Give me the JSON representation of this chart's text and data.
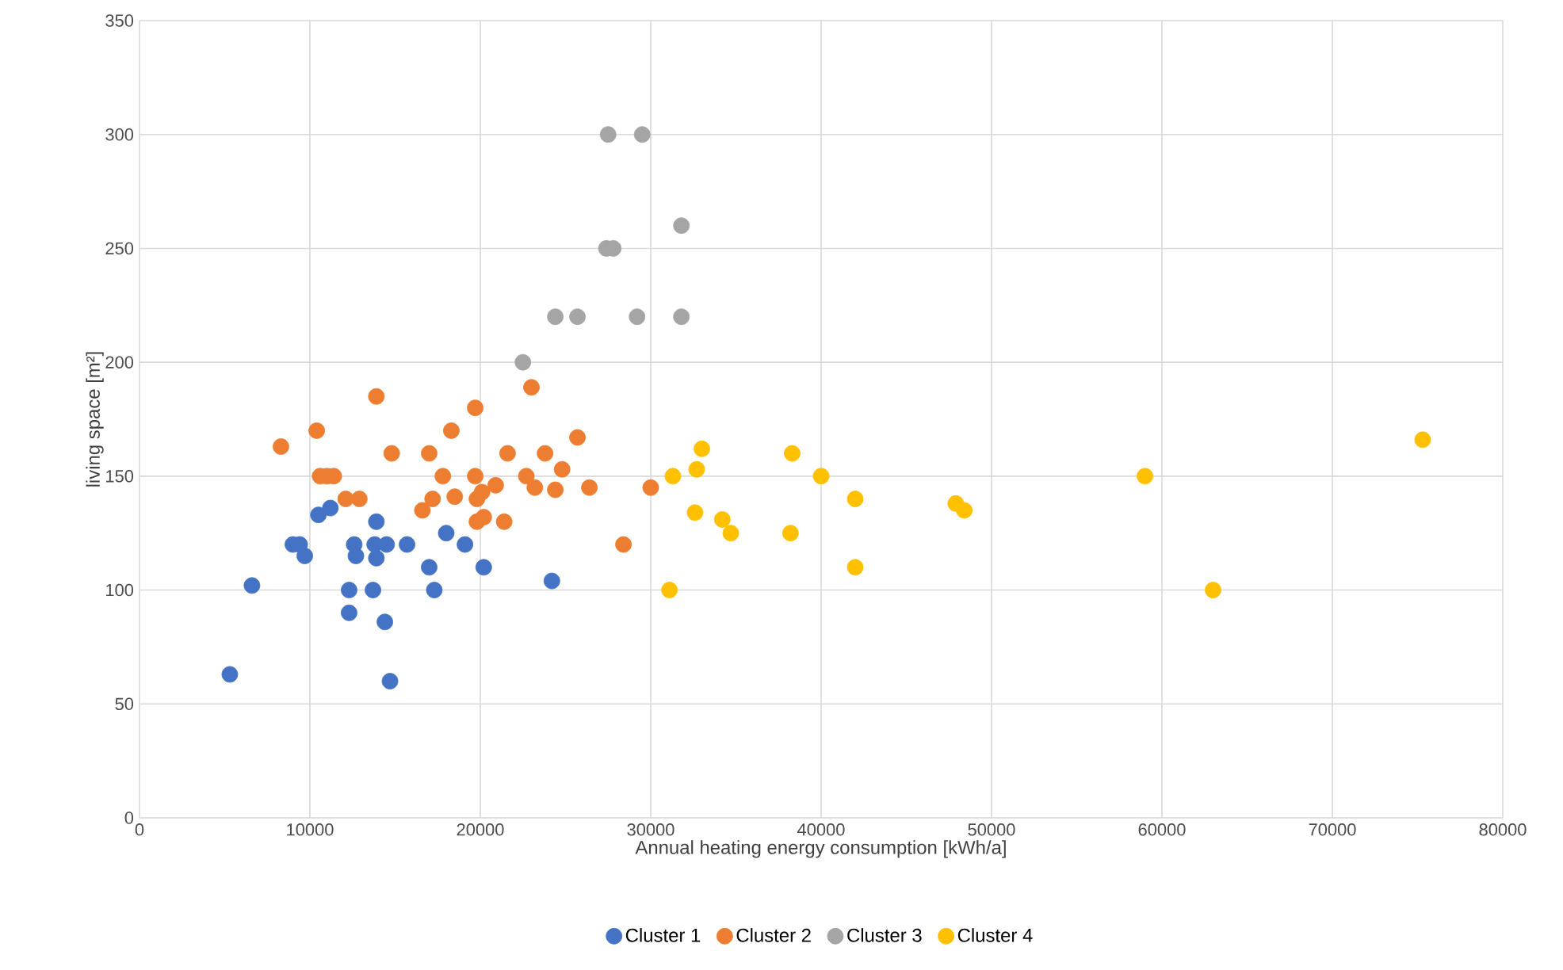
{
  "chart_data": {
    "type": "scatter",
    "xlabel": "Annual heating energy consumption [kWh/a]",
    "ylabel": "living space [m²]",
    "xlim": [
      0,
      80000
    ],
    "ylim": [
      0,
      350
    ],
    "xticks": [
      0,
      10000,
      20000,
      30000,
      40000,
      50000,
      60000,
      70000,
      80000
    ],
    "yticks": [
      0,
      50,
      100,
      150,
      200,
      250,
      300,
      350
    ],
    "grid": true,
    "legend": "bottom",
    "marker": "circle",
    "series": [
      {
        "name": "Cluster 1",
        "color": "#4472c4",
        "x": [
          5300,
          6600,
          9000,
          9400,
          9700,
          10500,
          11200,
          12300,
          12300,
          12600,
          12700,
          13700,
          13900,
          13800,
          13900,
          14500,
          14400,
          14700,
          15700,
          17000,
          17300,
          18000,
          19100,
          20200,
          24200
        ],
        "values": [
          63,
          102,
          120,
          120,
          115,
          133,
          136,
          100,
          90,
          120,
          115,
          100,
          130,
          120,
          114,
          120,
          86,
          60,
          120,
          110,
          100,
          125,
          120,
          110,
          104
        ]
      },
      {
        "name": "Cluster 2",
        "color": "#ed7d31",
        "x": [
          8300,
          10400,
          10600,
          11000,
          11400,
          12100,
          12900,
          13900,
          14800,
          16600,
          17000,
          17200,
          17800,
          18300,
          18500,
          19700,
          19700,
          19800,
          19800,
          20100,
          20200,
          20900,
          21400,
          21600,
          22700,
          23000,
          23200,
          23800,
          24400,
          24800,
          25700,
          26400,
          28400,
          30000
        ],
        "values": [
          163,
          170,
          150,
          150,
          150,
          140,
          140,
          185,
          160,
          135,
          160,
          140,
          150,
          170,
          141,
          180,
          150,
          140,
          130,
          143,
          132,
          146,
          130,
          160,
          150,
          189,
          145,
          160,
          144,
          153,
          167,
          145,
          120,
          145
        ]
      },
      {
        "name": "Cluster 3",
        "color": "#a5a5a5",
        "x": [
          27500,
          29500,
          31800,
          27400,
          27800,
          24400,
          25700,
          29200,
          31800,
          22500
        ],
        "values": [
          300,
          300,
          260,
          250,
          250,
          220,
          220,
          220,
          220,
          200
        ]
      },
      {
        "name": "Cluster 4",
        "color": "#ffc000",
        "x": [
          33000,
          38300,
          31300,
          32700,
          40000,
          42000,
          47900,
          48400,
          32600,
          34200,
          34700,
          38200,
          42000,
          31100,
          59000,
          63000,
          75300
        ],
        "values": [
          162,
          160,
          150,
          153,
          150,
          140,
          138,
          135,
          134,
          131,
          125,
          125,
          110,
          100,
          150,
          100,
          166
        ]
      }
    ]
  }
}
